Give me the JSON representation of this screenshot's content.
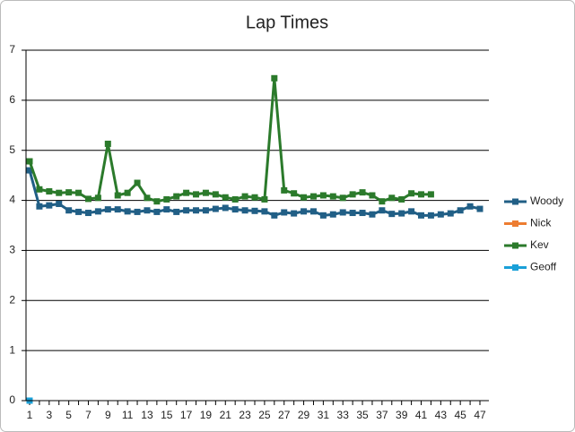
{
  "chart_data": {
    "type": "line",
    "title": "Lap Times",
    "categories": [
      1,
      null,
      3,
      null,
      5,
      null,
      7,
      null,
      9,
      null,
      11,
      null,
      13,
      null,
      15,
      null,
      17,
      null,
      19,
      null,
      21,
      null,
      23,
      null,
      25,
      null,
      27,
      null,
      29,
      null,
      31,
      null,
      33,
      null,
      35,
      null,
      37,
      null,
      39,
      null,
      41,
      null,
      43,
      null,
      45,
      null,
      47
    ],
    "series": [
      {
        "name": "Woody",
        "color": "#215f86",
        "values": [
          4.6,
          3.88,
          3.9,
          3.93,
          3.8,
          3.77,
          3.75,
          3.78,
          3.82,
          3.82,
          3.78,
          3.77,
          3.8,
          3.77,
          3.82,
          3.77,
          3.8,
          3.8,
          3.8,
          3.83,
          3.85,
          3.82,
          3.8,
          3.79,
          3.78,
          3.7,
          3.76,
          3.74,
          3.78,
          3.78,
          3.7,
          3.72,
          3.76,
          3.75,
          3.75,
          3.72,
          3.8,
          3.73,
          3.74,
          3.78,
          3.7,
          3.7,
          3.72,
          3.74,
          3.8,
          3.88,
          3.83
        ]
      },
      {
        "name": "Nick",
        "color": "#ed7d31",
        "values": [
          null,
          null,
          null,
          null,
          null,
          null,
          null,
          null,
          null,
          null,
          null,
          null,
          null,
          null,
          null,
          null,
          null,
          null,
          null,
          null,
          null,
          null,
          null,
          null,
          null,
          null,
          null,
          null,
          null,
          null,
          null,
          null,
          null,
          null,
          null,
          null,
          null,
          null,
          null,
          null,
          null,
          null,
          null,
          null,
          null,
          null,
          null
        ]
      },
      {
        "name": "Kev",
        "color": "#2b7a2b",
        "values": [
          4.78,
          4.22,
          4.18,
          4.15,
          4.16,
          4.15,
          4.03,
          4.05,
          5.13,
          4.1,
          4.15,
          4.35,
          4.05,
          3.98,
          4.02,
          4.08,
          4.15,
          4.12,
          4.15,
          4.12,
          4.06,
          4.02,
          4.08,
          4.06,
          4.02,
          6.44,
          4.2,
          4.14,
          4.06,
          4.08,
          4.1,
          4.08,
          4.05,
          4.12,
          4.16,
          4.1,
          3.98,
          4.05,
          4.02,
          4.14,
          4.12,
          4.12,
          null,
          null,
          null,
          null,
          null
        ]
      },
      {
        "name": "Geoff",
        "color": "#1aa0d8",
        "values": [
          0,
          null,
          null,
          null,
          null,
          null,
          null,
          null,
          null,
          null,
          null,
          null,
          null,
          null,
          null,
          null,
          null,
          null,
          null,
          null,
          null,
          null,
          null,
          null,
          null,
          null,
          null,
          null,
          null,
          null,
          null,
          null,
          null,
          null,
          null,
          null,
          null,
          null,
          null,
          null,
          null,
          null,
          null,
          null,
          null,
          null,
          null
        ]
      }
    ],
    "ylim": [
      0,
      7
    ],
    "yticks": [
      0,
      1,
      2,
      3,
      4,
      5,
      6,
      7
    ],
    "grid": true,
    "legend": "right"
  }
}
